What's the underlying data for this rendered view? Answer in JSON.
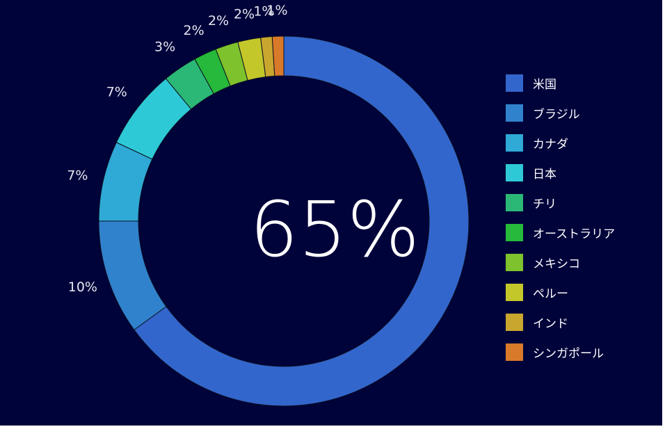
{
  "chart_data": {
    "type": "pie",
    "variant": "donut",
    "categories": [
      "米国",
      "ブラジル",
      "カナダ",
      "日本",
      "チリ",
      "オーストラリア",
      "メキシコ",
      "ペルー",
      "インド",
      "シンガポール"
    ],
    "values": [
      65,
      10,
      7,
      7,
      3,
      2,
      2,
      2,
      1,
      1
    ],
    "labels": [
      "65%",
      "10%",
      "7%",
      "7%",
      "3%",
      "2%",
      "2%",
      "2%",
      "1%",
      "1%"
    ],
    "center_text": "65%",
    "legend_position": "right",
    "colors": [
      "#3366cc",
      "#3182cd",
      "#2fa9d6",
      "#2ec9d6",
      "#2bb876",
      "#26b93b",
      "#7ec22d",
      "#c3c72a",
      "#c9a62e",
      "#d9792a"
    ],
    "background": "#00023a"
  }
}
